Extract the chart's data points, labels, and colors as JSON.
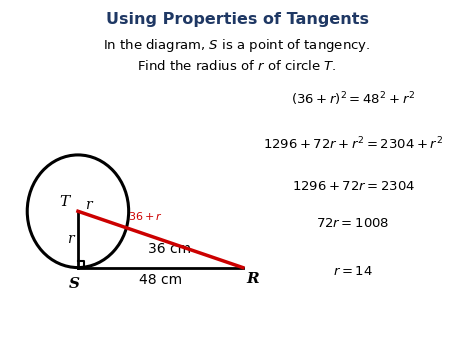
{
  "title": "Using Properties of Tangents",
  "title_color": "#1F3864",
  "subtitle1": "In the diagram, $S$ is a point of tangency.",
  "subtitle2": "Find the radius of $r$ of circle $T$.",
  "bg_color": "#ffffff",
  "diagram_bg": "#EFE0C0",
  "eq1": "$(36+r)^2=48^2+r^2$",
  "eq2": "$1296+72r+r^2=2304+r^2$",
  "eq3": "$1296+72r=2304$",
  "eq4": "$72r=1008$",
  "eq5": "$r=14$",
  "label_36r": "$36+r$",
  "label_36cm": "36 cm",
  "label_48cm": "48 cm",
  "label_T": "T",
  "label_S": "S",
  "label_R": "R",
  "label_r_top": "r",
  "label_r_left": "r"
}
